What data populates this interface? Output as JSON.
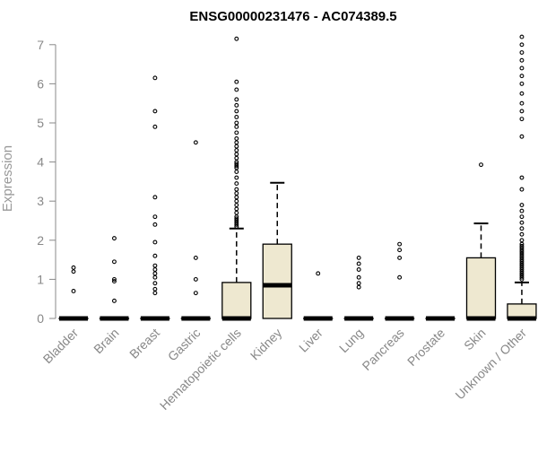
{
  "chart_data": {
    "type": "boxplot",
    "title": "ENSG00000231476 - AC074389.5",
    "xlabel": "",
    "ylabel": "Expression",
    "ylim": [
      0,
      7.2
    ],
    "yticks": [
      0,
      1,
      2,
      3,
      4,
      5,
      6,
      7
    ],
    "grid": false,
    "colors": {
      "box_fill": "#EEE8D0",
      "stroke": "#000000",
      "axis": "#888888"
    },
    "categories": [
      "Bladder",
      "Brain",
      "Breast",
      "Gastric",
      "Hematopoietic cells",
      "Kidney",
      "Liver",
      "Lung",
      "Pancreas",
      "Prostate",
      "Skin",
      "Unknown / Other"
    ],
    "boxes": [
      {
        "category": "Bladder",
        "q1": 0,
        "median": 0,
        "q3": 0,
        "whisker_low": 0,
        "whisker_high": 0,
        "outliers": [
          0.7,
          1.2,
          1.3
        ]
      },
      {
        "category": "Brain",
        "q1": 0,
        "median": 0,
        "q3": 0,
        "whisker_low": 0,
        "whisker_high": 0,
        "outliers": [
          0.45,
          0.95,
          1.0,
          1.45,
          2.05
        ]
      },
      {
        "category": "Breast",
        "q1": 0,
        "median": 0,
        "q3": 0,
        "whisker_low": 0,
        "whisker_high": 0,
        "outliers": [
          0.65,
          0.75,
          0.9,
          1.05,
          1.15,
          1.25,
          1.35,
          1.6,
          1.95,
          2.4,
          2.6,
          3.1,
          4.9,
          5.3,
          6.15
        ]
      },
      {
        "category": "Gastric",
        "q1": 0,
        "median": 0,
        "q3": 0,
        "whisker_low": 0,
        "whisker_high": 0,
        "outliers": [
          0.65,
          1.0,
          1.55,
          4.5
        ]
      },
      {
        "category": "Hematopoietic cells",
        "q1": 0,
        "median": 0,
        "q3": 0.92,
        "whisker_low": 0,
        "whisker_high": 2.3,
        "outliers": [
          2.35,
          2.4,
          2.45,
          2.5,
          2.55,
          2.6,
          2.7,
          2.8,
          2.9,
          3.0,
          3.1,
          3.2,
          3.3,
          3.45,
          3.6,
          3.75,
          3.85,
          3.9,
          3.95,
          4.0,
          4.1,
          4.2,
          4.3,
          4.4,
          4.5,
          4.6,
          4.75,
          4.9,
          5.0,
          5.15,
          5.3,
          5.45,
          5.6,
          5.85,
          6.05,
          7.15
        ]
      },
      {
        "category": "Kidney",
        "q1": 0,
        "median": 0.85,
        "q3": 1.9,
        "whisker_low": 0,
        "whisker_high": 3.47,
        "outliers": []
      },
      {
        "category": "Liver",
        "q1": 0,
        "median": 0,
        "q3": 0,
        "whisker_low": 0,
        "whisker_high": 0,
        "outliers": [
          1.15
        ]
      },
      {
        "category": "Lung",
        "q1": 0,
        "median": 0,
        "q3": 0,
        "whisker_low": 0,
        "whisker_high": 0,
        "outliers": [
          0.8,
          0.9,
          1.05,
          1.25,
          1.4,
          1.55
        ]
      },
      {
        "category": "Pancreas",
        "q1": 0,
        "median": 0,
        "q3": 0,
        "whisker_low": 0,
        "whisker_high": 0,
        "outliers": [
          1.05,
          1.55,
          1.75,
          1.9
        ]
      },
      {
        "category": "Prostate",
        "q1": 0,
        "median": 0,
        "q3": 0,
        "whisker_low": 0,
        "whisker_high": 0,
        "outliers": []
      },
      {
        "category": "Skin",
        "q1": 0,
        "median": 0,
        "q3": 1.55,
        "whisker_low": 0,
        "whisker_high": 2.43,
        "outliers": [
          3.93
        ]
      },
      {
        "category": "Unknown / Other",
        "q1": 0,
        "median": 0,
        "q3": 0.37,
        "whisker_low": 0,
        "whisker_high": 0.92,
        "outliers": [
          1.0,
          1.05,
          1.1,
          1.15,
          1.2,
          1.25,
          1.3,
          1.35,
          1.4,
          1.45,
          1.5,
          1.55,
          1.6,
          1.65,
          1.7,
          1.75,
          1.8,
          1.85,
          1.9,
          2.0,
          2.15,
          2.3,
          2.45,
          2.6,
          2.75,
          2.9,
          3.3,
          3.6,
          4.65,
          5.1,
          5.3,
          5.5,
          5.75,
          6.0,
          6.2,
          6.4,
          6.6,
          6.8,
          7.0,
          7.2
        ]
      }
    ]
  }
}
